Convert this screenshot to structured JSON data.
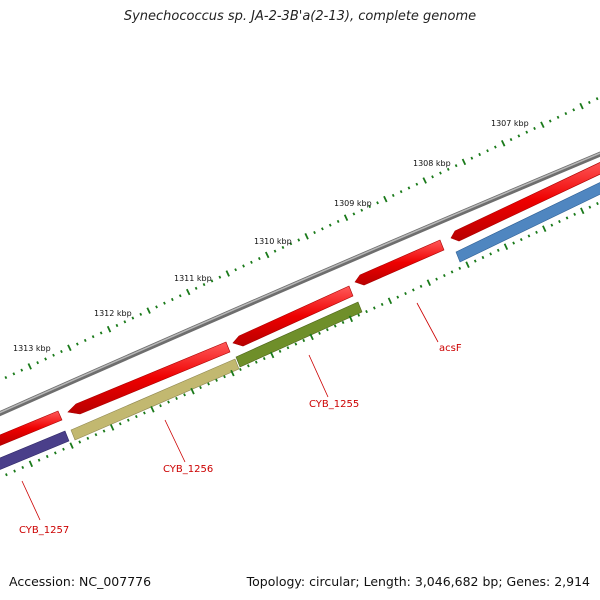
{
  "title": "Synechococcus sp. JA-2-3B'a(2-13), complete genome",
  "footer": {
    "accession": "Accession: NC_007776",
    "summary": "Topology: circular; Length: 3,046,682 bp; Genes: 2,914"
  },
  "scale_labels": [
    "1307 kbp",
    "1308 kbp",
    "1309 kbp",
    "1310 kbp",
    "1311 kbp",
    "1312 kbp",
    "1313 kbp"
  ],
  "genes": [
    {
      "label": "acsF",
      "color": "#cc0000"
    },
    {
      "label": "CYB_1255",
      "color": "#cc0000"
    },
    {
      "label": "CYB_1256",
      "color": "#cc0000"
    },
    {
      "label": "CYB_1257",
      "color": "#cc0000"
    }
  ],
  "colors": {
    "backbone": "#8a8a8a",
    "cds": "#ee1111",
    "tick": "#1a7a1a",
    "gene_blue": "#4f86c0",
    "gene_green": "#6f8f2a",
    "gene_khaki": "#c2b870",
    "gene_purple": "#4a3f8a"
  }
}
